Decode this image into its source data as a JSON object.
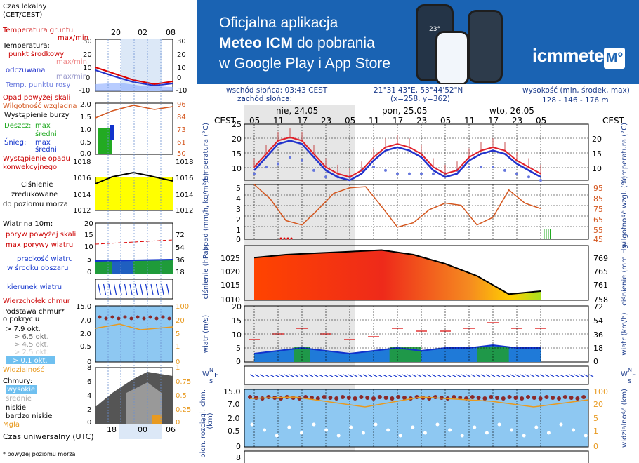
{
  "banner": {
    "line1": "Oficjalna aplikacja",
    "line2_bold": "Meteo ICM",
    "line2_rest": " do pobrania",
    "line3": "w Google Play i App Store",
    "logo": "icmmeteo",
    "logo_badge": "M°",
    "phone_temp": "23°"
  },
  "info": {
    "sunrise": "wschód słońca: 03:43 CEST",
    "sunset": "zachód słońca:",
    "coords": "21°31'43\"E, 53°44'52\"N",
    "grid": "(x=258,  y=362)",
    "height_label": "wysokość (min, środek, max)",
    "height_values": "128 - 146 - 176 m"
  },
  "legend": {
    "time_local": "Czas lokalny",
    "time_local2": "(CET/CEST)",
    "time_ticks": [
      "20",
      "02",
      "08"
    ],
    "soil_temp": "Temperatura gruntu",
    "soil_temp2": "max/min",
    "temperature": "Temperatura:",
    "mid_point": "punkt środkowy",
    "max_min_1": "max/min",
    "feels": "odczuwana",
    "max_min_2": "max/min",
    "dew": "Temp. punktu rosy",
    "precip_over": "Opad powyżej skali",
    "humidity": "Wilgotność względna",
    "storm": "Wystąpienie burzy",
    "rain": "Deszcz:",
    "max1": "max",
    "mean1": "średni",
    "snow": "Śnieg:",
    "max2": "max",
    "mean2": "średni",
    "convective1": "Wystąpienie opadu",
    "convective2": "konwekcyjnego",
    "pressure1": "Ciśnienie",
    "pressure2": "zredukowane",
    "pressure3": "do poziomu morza",
    "wind10": "Wiatr na 10m:",
    "gust_over": "poryw powyżej skali",
    "gust_max": "max porywy wiatru",
    "wind_speed1": "prędkość wiatru",
    "wind_speed2": "w środku obszaru",
    "wind_dir": "kierunek wiatru",
    "cloud_top": "Wierzchołek chmur",
    "cloud_base1": "Podstawa chmur*",
    "cloud_base2": "o pokryciu",
    "okt": [
      "> 7.9 okt.",
      "> 6.5 okt.",
      "> 4.5 okt.",
      "> 2.5 okt.",
      "> 0.1 okt."
    ],
    "visibility": "Widzialność",
    "clouds": "Chmury:",
    "high": "wysokie",
    "medium": "średnie",
    "low": "niskie",
    "very_low": "bardzo niskie",
    "fog": "Mgła",
    "utc": "Czas uniwersalny (UTC)",
    "utc_ticks": [
      "18",
      "00",
      "06"
    ],
    "footnote": "* powyżej poziomu morza",
    "ticks": {
      "temp_l": [
        "30",
        "20",
        "10",
        "0",
        "-10"
      ],
      "temp_r": [
        "30",
        "20",
        "10",
        "0",
        "-10"
      ],
      "prec_l": [
        "2.0",
        "1.5",
        "1.0",
        "0.5",
        "0.0"
      ],
      "prec_r": [
        "96",
        "84",
        "73",
        "61",
        "50"
      ],
      "pres_l": [
        "1018",
        "1016",
        "1014",
        "1012"
      ],
      "pres_r": [
        "1018",
        "1016",
        "1014",
        "1012"
      ],
      "wind_l": [
        "20",
        "15",
        "10",
        "5",
        "0"
      ],
      "wind_r": [
        "72",
        "54",
        "36",
        "18",
        "0"
      ],
      "cb_l": [
        "15.0",
        "7.0",
        "2.0",
        "0.5",
        "0"
      ],
      "cb_r": [
        "100",
        "20",
        "5",
        "1",
        "0"
      ],
      "cl_l": [
        "8",
        "6",
        "4",
        "2",
        "0"
      ],
      "cl_r": [
        "1",
        "0.75",
        "0.5",
        "0.25",
        "0"
      ]
    }
  },
  "main": {
    "tz": "CEST",
    "days": [
      "nie, 24.05",
      "pon, 25.05",
      "wto, 26.05"
    ],
    "hours": [
      "05",
      "11",
      "17",
      "23",
      "05",
      "11",
      "17",
      "23",
      "05",
      "11",
      "17",
      "23",
      "05"
    ],
    "axes": {
      "temp_left": "temperatura (°C)",
      "temp_right": "temperatura (°C)",
      "prec_left": "opad (mm/h, kg/m²/h)",
      "prec_right": "wilgotność wzgl. (%)",
      "pres_left": "ciśnienie (hPa)",
      "pres_right": "ciśnienie (mm Hg)",
      "wind_left": "wiatr (m/s)",
      "wind_right": "wiatr (km/h)",
      "cb_left": "pion. rozciągl. chm.",
      "cb_left2": "(km)",
      "cb_right": "widzialność (km)",
      "compass": [
        "W",
        "N",
        "S",
        "E"
      ]
    },
    "ticks": {
      "temp_l": [
        "25",
        "20",
        "15",
        "10"
      ],
      "temp_r": [
        "20",
        "15",
        "10"
      ],
      "prec_l": [
        "5",
        "4",
        "3",
        "2",
        "1",
        "0"
      ],
      "prec_r": [
        "95",
        "85",
        "75",
        "65",
        "55",
        "45"
      ],
      "pres_l": [
        "1025",
        "1020",
        "1015",
        "1010"
      ],
      "pres_r": [
        "769",
        "765",
        "761",
        "758"
      ],
      "wind_l": [
        "20",
        "15",
        "10",
        "5",
        "0"
      ],
      "wind_r": [
        "72",
        "54",
        "36",
        "18",
        "0"
      ],
      "cb_l": [
        "15.0",
        "7.0",
        "2.0",
        "0.5",
        "0"
      ],
      "cb_r": [
        "100",
        "20",
        "5",
        "1",
        "0"
      ],
      "bottom_l": "8"
    }
  },
  "chart_data": [
    {
      "type": "line",
      "title": "temperatura (°C)",
      "x_hours_from_start": [
        0,
        3,
        6,
        9,
        12,
        15,
        18,
        21,
        24,
        27,
        30,
        33,
        36,
        39,
        42,
        45,
        48,
        51,
        54,
        57,
        60,
        63,
        66,
        69,
        72
      ],
      "series": [
        {
          "name": "max/min",
          "values": [
            13,
            17,
            21,
            22,
            21,
            17,
            13,
            11,
            10,
            12,
            16,
            19,
            20,
            19,
            17,
            13,
            11,
            12,
            16,
            18,
            19,
            18,
            15,
            13,
            11
          ]
        },
        {
          "name": "punkt środkowy",
          "values": [
            12,
            16,
            20,
            21,
            20,
            16,
            12,
            10,
            9,
            11,
            15,
            18,
            19,
            18,
            16,
            12,
            10,
            11,
            15,
            17,
            18,
            17,
            14,
            12,
            10
          ]
        },
        {
          "name": "odczuwana",
          "values": [
            11,
            15,
            19,
            20,
            19,
            15,
            11,
            9,
            8,
            10,
            14,
            17,
            18,
            17,
            15,
            11,
            9,
            10,
            14,
            16,
            17,
            16,
            13,
            11,
            9
          ]
        },
        {
          "name": "Temp. punktu rosy",
          "values": [
            10,
            12,
            13,
            15,
            14,
            11,
            9,
            9,
            9,
            11,
            12,
            11,
            10,
            10,
            10,
            10,
            10,
            11,
            12,
            12,
            12,
            11,
            10,
            9,
            8
          ]
        }
      ],
      "ylim": [
        8,
        25
      ]
    },
    {
      "type": "line",
      "title": "wilgotność wzgl. (%)",
      "x_hours_from_start": [
        0,
        4,
        8,
        12,
        16,
        20,
        24,
        28,
        32,
        36,
        40,
        44,
        48,
        52,
        56,
        60,
        64,
        68,
        72
      ],
      "series": [
        {
          "name": "Wilgotność względna",
          "values": [
            95,
            82,
            62,
            58,
            72,
            87,
            92,
            93,
            75,
            56,
            60,
            72,
            78,
            76,
            58,
            65,
            90,
            78,
            73
          ]
        }
      ],
      "ylim": [
        45,
        95
      ]
    },
    {
      "type": "area",
      "title": "ciśnienie (hPa)",
      "x_hours_from_start": [
        0,
        8,
        16,
        24,
        32,
        40,
        48,
        56,
        64,
        72
      ],
      "series": [
        {
          "name": "Ciśnienie",
          "values": [
            1024,
            1025,
            1025.5,
            1026,
            1026.5,
            1025,
            1022,
            1018,
            1012,
            1013
          ]
        }
      ],
      "ylim": [
        1010,
        1028
      ]
    },
    {
      "type": "line",
      "title": "wiatr (m/s)",
      "x_hours_from_start": [
        0,
        6,
        12,
        18,
        24,
        30,
        36,
        42,
        48,
        54,
        60,
        66,
        72
      ],
      "series": [
        {
          "name": "max porywy wiatru",
          "values": [
            8,
            10,
            12,
            10,
            8,
            9,
            12,
            11,
            11,
            12,
            14,
            12,
            12
          ]
        },
        {
          "name": "prędkość wiatru",
          "values": [
            3,
            4,
            5,
            4,
            3,
            4,
            5,
            4,
            5,
            5,
            6,
            5,
            5
          ]
        }
      ],
      "ylim": [
        0,
        20
      ]
    }
  ]
}
